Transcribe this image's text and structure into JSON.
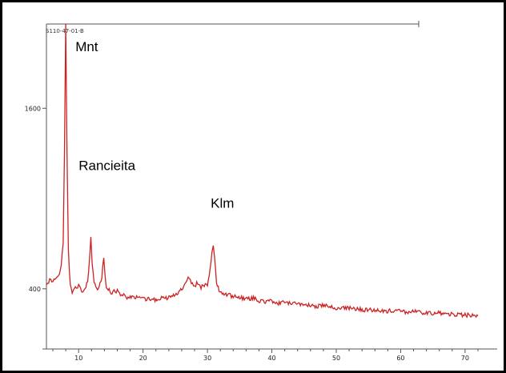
{
  "chart_data": {
    "type": "line",
    "title": "",
    "sample_id": "S110-47-01-B",
    "xlabel": "",
    "ylabel": "",
    "xlim": [
      5,
      72.5
    ],
    "ylim": [
      0,
      2160
    ],
    "x_ticks": [
      10,
      20,
      30,
      40,
      50,
      60,
      70
    ],
    "y_ticks": [
      400,
      1600
    ],
    "grid": false,
    "line_color": "#cc2222",
    "series": [
      {
        "x": [
          5,
          5.5,
          6,
          6.5,
          7,
          7.3,
          7.6,
          7.8,
          8,
          8.2,
          8.4,
          8.7,
          9,
          9.5,
          10,
          10.5,
          11,
          11.4,
          11.7,
          11.9,
          12.1,
          12.4,
          12.8,
          13.2,
          13.6,
          13.9,
          14.1,
          14.3,
          14.6,
          15,
          15.5,
          16,
          16.5,
          17,
          17.5,
          18,
          19,
          20,
          21,
          22,
          23,
          24,
          25,
          26,
          26.5,
          27,
          27.5,
          28,
          28.5,
          29,
          29.5,
          30,
          30.4,
          30.7,
          30.9,
          31.1,
          31.4,
          31.8,
          32.3,
          33,
          34,
          35,
          36,
          37,
          38,
          39,
          40,
          41,
          42,
          43,
          44,
          45,
          46,
          47,
          48,
          49,
          50,
          51,
          52,
          53,
          54,
          55,
          56,
          57,
          58,
          59,
          60,
          61,
          62,
          63,
          64,
          65,
          66,
          67,
          68,
          69,
          70,
          71,
          72
        ],
        "y": [
          440,
          455,
          460,
          470,
          500,
          560,
          700,
          1300,
          2160,
          1300,
          650,
          420,
          380,
          400,
          420,
          380,
          390,
          450,
          600,
          750,
          560,
          440,
          400,
          420,
          480,
          610,
          490,
          420,
          400,
          370,
          380,
          390,
          360,
          370,
          340,
          350,
          340,
          330,
          330,
          325,
          340,
          340,
          360,
          400,
          430,
          470,
          440,
          420,
          440,
          410,
          420,
          430,
          520,
          640,
          690,
          600,
          440,
          390,
          370,
          360,
          350,
          345,
          330,
          340,
          320,
          315,
          320,
          300,
          310,
          300,
          305,
          295,
          290,
          285,
          290,
          280,
          270,
          275,
          270,
          268,
          260,
          262,
          260,
          258,
          252,
          255,
          250,
          245,
          248,
          242,
          240,
          236,
          238,
          232,
          230,
          228,
          226,
          224,
          220
        ]
      }
    ],
    "annotations": [
      {
        "text": "Mnt",
        "x": 9.5,
        "y": 1980
      },
      {
        "text": "Rancieita",
        "x": 10,
        "y": 1190
      },
      {
        "text": "Klm",
        "x": 30.5,
        "y": 940
      }
    ]
  }
}
